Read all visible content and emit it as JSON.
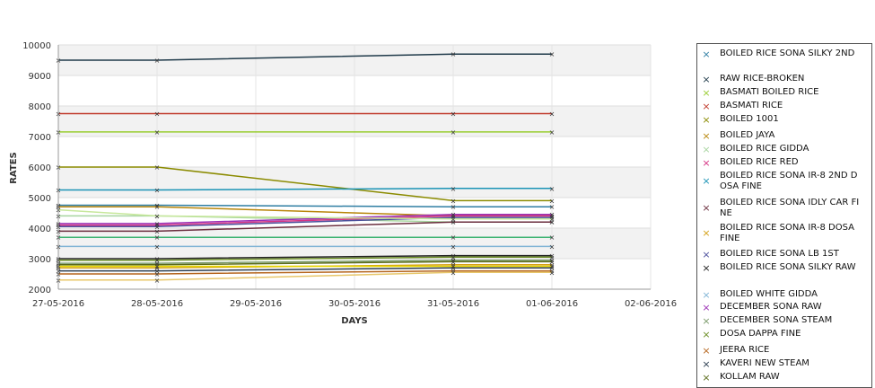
{
  "chart_data": {
    "type": "line",
    "xlabel": "DAYS",
    "ylabel": "RATES",
    "ylim": [
      2000,
      10000
    ],
    "yticks": [
      2000,
      3000,
      4000,
      5000,
      6000,
      7000,
      8000,
      9000,
      10000
    ],
    "xticks": [
      "27-05-2016",
      "28-05-2016",
      "29-05-2016",
      "30-05-2016",
      "31-05-2016",
      "01-06-2016",
      "02-06-2016"
    ],
    "grid": true,
    "legend_position": "right",
    "series": [
      {
        "name": "BOILED RICE SONA SILKY 2ND",
        "color": "#2f7ea3",
        "x": [
          "27-05-2016",
          "28-05-2016",
          "31-05-2016",
          "01-06-2016"
        ],
        "values": [
          4750,
          4750,
          4700,
          4700
        ]
      },
      {
        "name": "RAW RICE-BROKEN",
        "color": "#1f3a4a",
        "x": [
          "27-05-2016",
          "28-05-2016",
          "31-05-2016",
          "01-06-2016"
        ],
        "values": [
          9500,
          9500,
          9700,
          9700
        ]
      },
      {
        "name": "BASMATI  BOILED RICE",
        "color": "#9acd32",
        "x": [
          "27-05-2016",
          "28-05-2016",
          "31-05-2016",
          "01-06-2016"
        ],
        "values": [
          7150,
          7150,
          7150,
          7150
        ]
      },
      {
        "name": "BASMATI RICE",
        "color": "#c0392b",
        "x": [
          "27-05-2016",
          "28-05-2016",
          "31-05-2016",
          "01-06-2016"
        ],
        "values": [
          7750,
          7750,
          7750,
          7750
        ]
      },
      {
        "name": "BOILED 1001",
        "color": "#8b8b00",
        "x": [
          "27-05-2016",
          "28-05-2016",
          "31-05-2016",
          "01-06-2016"
        ],
        "values": [
          6000,
          6000,
          4900,
          4900
        ]
      },
      {
        "name": "BOILED JAYA",
        "color": "#b8860b",
        "x": [
          "27-05-2016",
          "28-05-2016",
          "31-05-2016",
          "01-06-2016"
        ],
        "values": [
          4700,
          4700,
          4400,
          4400
        ]
      },
      {
        "name": "BOILED RICE GIDDA",
        "color": "#a8d5a0",
        "x": [
          "27-05-2016",
          "28-05-2016",
          "31-05-2016",
          "01-06-2016"
        ],
        "values": [
          4400,
          4400,
          4200,
          4200
        ]
      },
      {
        "name": "BOILED RICE RED",
        "color": "#d63384",
        "x": [
          "27-05-2016",
          "28-05-2016",
          "31-05-2016",
          "01-06-2016"
        ],
        "values": [
          4100,
          4100,
          4400,
          4400
        ]
      },
      {
        "name": "BOILED RICE SONA  IR-8 2ND DOSA FINE",
        "color": "#1a93b5",
        "x": [
          "27-05-2016",
          "28-05-2016",
          "31-05-2016",
          "01-06-2016"
        ],
        "values": [
          5250,
          5250,
          5300,
          5300
        ]
      },
      {
        "name": "BOILED RICE SONA IDLY CAR FINE",
        "color": "#6b2e3e",
        "x": [
          "27-05-2016",
          "28-05-2016",
          "31-05-2016",
          "01-06-2016"
        ],
        "values": [
          3900,
          3900,
          4200,
          4200
        ]
      },
      {
        "name": "BOILED RICE SONA IR-8 DOSA FINE",
        "color": "#d4a017",
        "x": [
          "27-05-2016",
          "28-05-2016",
          "31-05-2016",
          "01-06-2016"
        ],
        "values": [
          2700,
          2700,
          2800,
          2800
        ]
      },
      {
        "name": "BOILED RICE SONA LB 1ST",
        "color": "#4b4f9c",
        "x": [
          "27-05-2016",
          "28-05-2016",
          "31-05-2016",
          "01-06-2016"
        ],
        "values": [
          4050,
          4050,
          4350,
          4350
        ]
      },
      {
        "name": "BOILED RICE SONA SILKY RAW",
        "color": "#222222",
        "x": [
          "27-05-2016",
          "28-05-2016",
          "31-05-2016",
          "01-06-2016"
        ],
        "values": [
          3000,
          3000,
          3100,
          3100
        ]
      },
      {
        "name": "BOILED WHITE GIDDA",
        "color": "#7fb3d5",
        "x": [
          "27-05-2016",
          "28-05-2016",
          "31-05-2016",
          "01-06-2016"
        ],
        "values": [
          3400,
          3400,
          3400,
          3400
        ]
      },
      {
        "name": "DECEMBER SONA RAW",
        "color": "#9b30b5",
        "x": [
          "27-05-2016",
          "28-05-2016",
          "31-05-2016",
          "01-06-2016"
        ],
        "values": [
          4150,
          4150,
          4450,
          4450
        ]
      },
      {
        "name": "DECEMBER SONA STEAM",
        "color": "#7a9a6a",
        "x": [
          "27-05-2016",
          "28-05-2016",
          "31-05-2016",
          "01-06-2016"
        ],
        "values": [
          2850,
          2850,
          2950,
          2950
        ]
      },
      {
        "name": "DOSA DAPPA FINE",
        "color": "#6b8e23",
        "x": [
          "27-05-2016",
          "28-05-2016",
          "31-05-2016",
          "01-06-2016"
        ],
        "values": [
          2950,
          2950,
          3050,
          3050
        ]
      },
      {
        "name": "JEERA RICE",
        "color": "#b5651d",
        "x": [
          "27-05-2016",
          "28-05-2016",
          "31-05-2016",
          "01-06-2016"
        ],
        "values": [
          2500,
          2500,
          2600,
          2600
        ]
      },
      {
        "name": "KAVERI NEW STEAM",
        "color": "#2c3e50",
        "x": [
          "27-05-2016",
          "28-05-2016",
          "31-05-2016",
          "01-06-2016"
        ],
        "values": [
          2600,
          2600,
          2700,
          2700
        ]
      },
      {
        "name": "KOLLAM RAW",
        "color": "#5a6b1a",
        "x": [
          "27-05-2016",
          "28-05-2016",
          "31-05-2016",
          "01-06-2016"
        ],
        "values": [
          2800,
          2800,
          2900,
          2900
        ]
      },
      {
        "name": "",
        "color": "#3cb371",
        "x": [
          "27-05-2016",
          "28-05-2016",
          "31-05-2016",
          "01-06-2016"
        ],
        "values": [
          3700,
          3700,
          3700,
          3700
        ]
      },
      {
        "name": "",
        "color": "#e8c76a",
        "x": [
          "27-05-2016",
          "28-05-2016",
          "31-05-2016",
          "01-06-2016"
        ],
        "values": [
          2300,
          2300,
          2550,
          2550
        ]
      },
      {
        "name": "",
        "color": "#e6d800",
        "x": [
          "27-05-2016",
          "28-05-2016",
          "31-05-2016",
          "01-06-2016"
        ],
        "values": [
          2750,
          2750,
          2750,
          2750
        ]
      },
      {
        "name": "",
        "color": "#c7e89c",
        "x": [
          "27-05-2016",
          "28-05-2016",
          "31-05-2016",
          "01-06-2016"
        ],
        "values": [
          4600,
          4400,
          4300,
          4300
        ]
      }
    ]
  }
}
